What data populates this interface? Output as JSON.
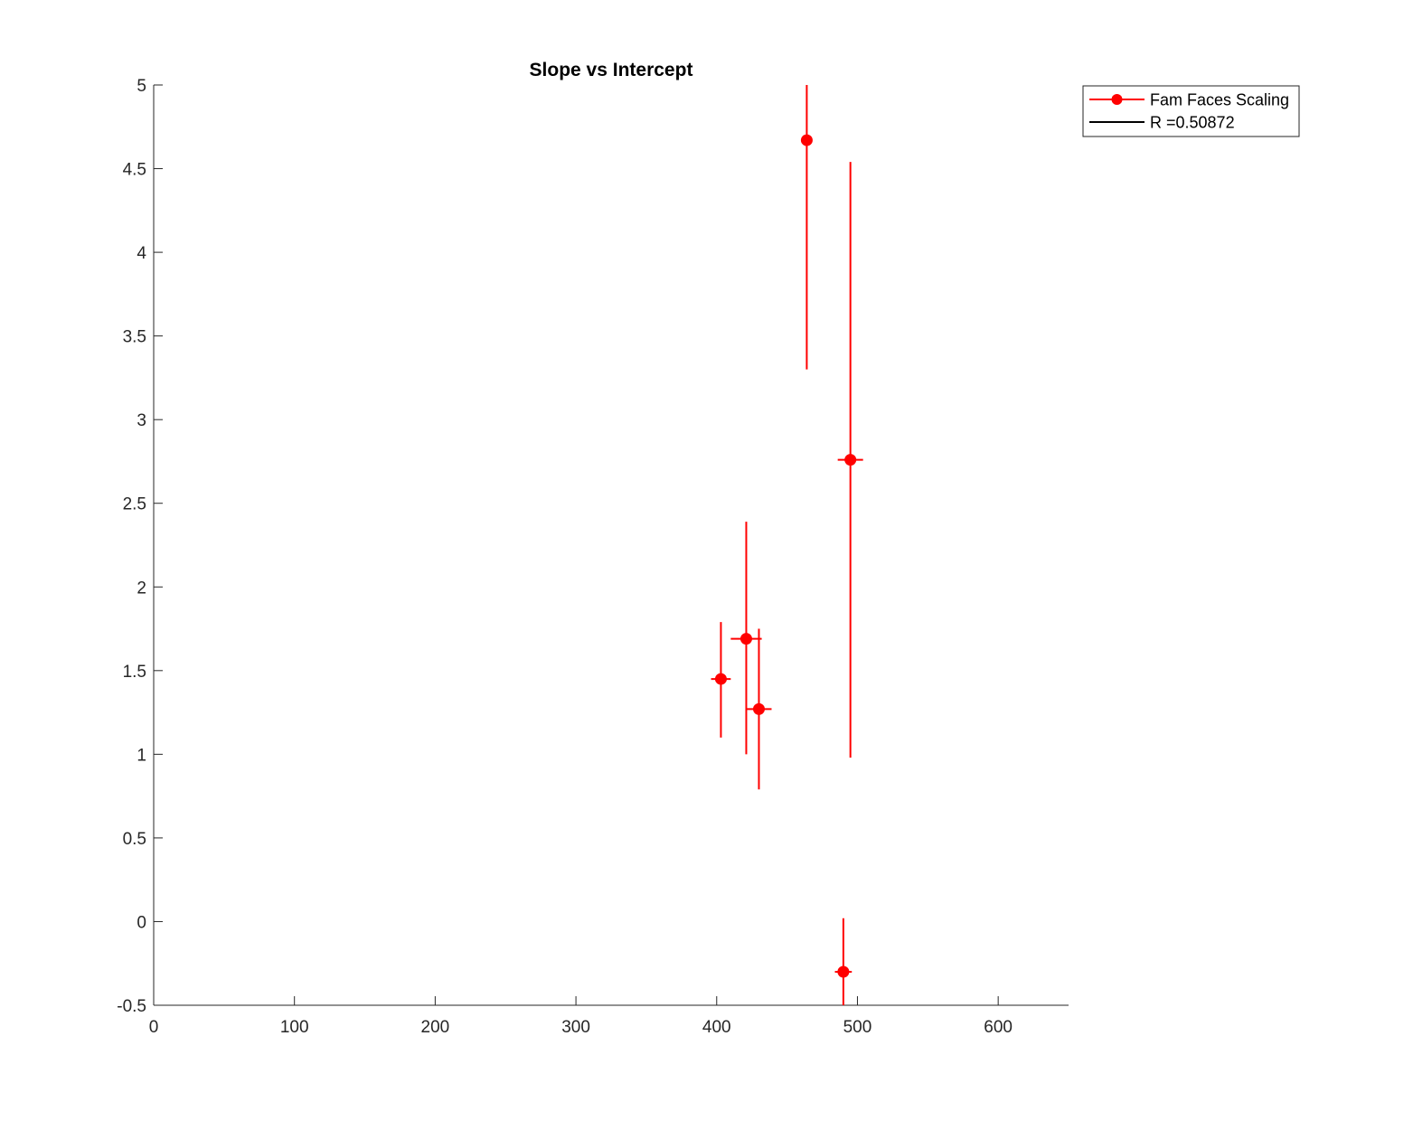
{
  "chart_data": {
    "type": "scatter",
    "title": "Slope vs Intercept",
    "xlabel": "",
    "ylabel": "",
    "xlim": [
      0,
      650
    ],
    "ylim": [
      -0.5,
      5
    ],
    "x_ticks": [
      0,
      100,
      200,
      300,
      400,
      500,
      600
    ],
    "y_ticks": [
      -0.5,
      0,
      0.5,
      1,
      1.5,
      2,
      2.5,
      3,
      3.5,
      4,
      4.5,
      5
    ],
    "y_tick_labels": [
      "-0.5",
      "0",
      "0.5",
      "1",
      "1.5",
      "2",
      "2.5",
      "3",
      "3.5",
      "4",
      "4.5",
      "5"
    ],
    "grid": false,
    "legend_position": "outside-top-right",
    "series": [
      {
        "name": "Fam Faces Scaling",
        "color": "#ff0000",
        "marker": "circle",
        "points": [
          {
            "x": 403,
            "y": 1.45,
            "xerr": 7,
            "ylow": 1.1,
            "yhigh": 1.79
          },
          {
            "x": 421,
            "y": 1.69,
            "xerr": 11,
            "ylow": 1.0,
            "yhigh": 2.39
          },
          {
            "x": 430,
            "y": 1.27,
            "xerr": 9,
            "ylow": 0.79,
            "yhigh": 1.75
          },
          {
            "x": 464,
            "y": 4.67,
            "xerr": 0,
            "ylow": 3.3,
            "yhigh": 5.0
          },
          {
            "x": 490,
            "y": -0.3,
            "xerr": 6,
            "ylow": -0.5,
            "yhigh": 0.02
          },
          {
            "x": 495,
            "y": 2.76,
            "xerr": 9,
            "ylow": 0.98,
            "yhigh": 4.54
          }
        ]
      },
      {
        "name": "R =0.50872",
        "color": "#000000",
        "marker": "line",
        "points": []
      }
    ]
  }
}
